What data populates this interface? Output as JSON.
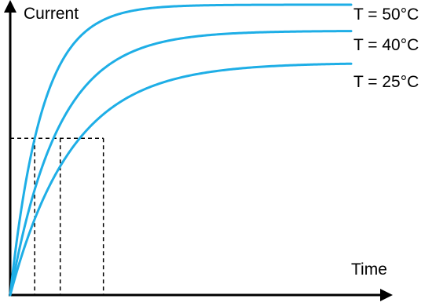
{
  "chart_data": {
    "type": "line",
    "title": "",
    "xlabel": "Time",
    "ylabel": "Current",
    "x_ticks": [],
    "y_ticks": [],
    "grid": false,
    "legend": "none",
    "line_color": "#1eaee6",
    "axis_color": "#000000",
    "guide_color": "#000000",
    "series": [
      {
        "name": "T = 50°C",
        "tau": 1.15,
        "amplitude": 1.0
      },
      {
        "name": "T = 40°C",
        "tau": 1.75,
        "amplitude": 0.91
      },
      {
        "name": "T = 25°C",
        "tau": 2.25,
        "amplitude": 0.8
      }
    ],
    "x_domain": [
      0,
      12.4
    ],
    "y_domain": [
      0,
      1.0
    ],
    "threshold": {
      "y": 0.54,
      "crossings_x": [
        0.89,
        1.82,
        3.39
      ]
    }
  }
}
